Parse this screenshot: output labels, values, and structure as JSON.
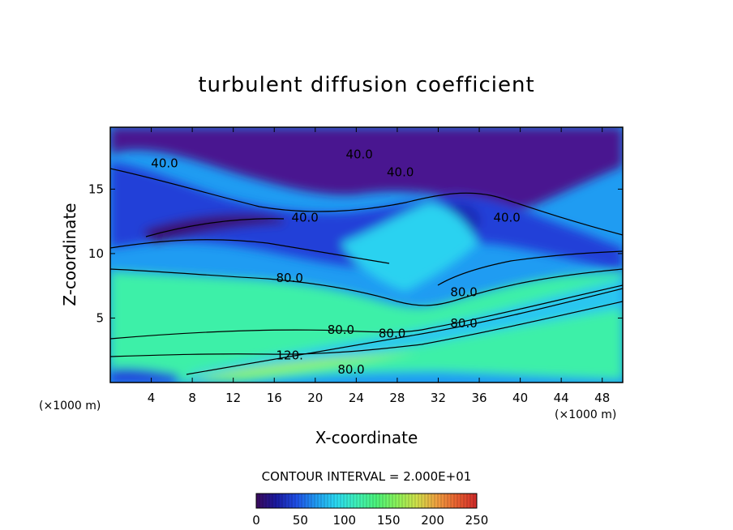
{
  "chart_data": {
    "type": "heatmap",
    "title": "turbulent diffusion coefficient",
    "xlabel": "X-coordinate",
    "ylabel": "Z-coordinate",
    "x_unit": "(×1000 m)",
    "z_unit": "(×1000 m)",
    "xlim": [
      0,
      50
    ],
    "ylim": [
      0,
      19.8
    ],
    "x_ticks": [
      4,
      8,
      12,
      16,
      20,
      24,
      28,
      32,
      36,
      40,
      44,
      48
    ],
    "y_ticks": [
      5,
      10,
      15
    ],
    "contour_interval_label": "CONTOUR INTERVAL = 2.000E+01",
    "contour_interval": 20,
    "colorbar": {
      "range": [
        0,
        250
      ],
      "ticks": [
        0,
        50,
        100,
        150,
        200,
        250
      ],
      "colors": [
        "#3b0a5c",
        "#1a1aa0",
        "#1f4fe6",
        "#1f9cf2",
        "#2ad9f0",
        "#3ef0b8",
        "#4cf27a",
        "#8af25a",
        "#d0e04a",
        "#f0a040",
        "#e86030",
        "#d02a2a"
      ]
    },
    "contour_labels": [
      {
        "text": "80.0",
        "x": 17.5,
        "z": 8.1
      },
      {
        "text": "40.0",
        "x": 24.3,
        "z": 17.7
      },
      {
        "text": "40.0",
        "x": 28.3,
        "z": 16.3
      },
      {
        "text": "40.0",
        "x": 19.0,
        "z": 12.8
      },
      {
        "text": "40.0",
        "x": 38.7,
        "z": 12.8
      },
      {
        "text": "40.0",
        "x": 5.3,
        "z": 17.0
      },
      {
        "text": "80.0",
        "x": 34.5,
        "z": 7.0
      },
      {
        "text": "80.0",
        "x": 34.5,
        "z": 4.6
      },
      {
        "text": "80.0",
        "x": 22.5,
        "z": 4.1
      },
      {
        "text": "80.0",
        "x": 27.5,
        "z": 3.8
      },
      {
        "text": "120.",
        "x": 17.5,
        "z": 2.1
      },
      {
        "text": "80.0",
        "x": 23.5,
        "z": 1.0
      }
    ]
  }
}
